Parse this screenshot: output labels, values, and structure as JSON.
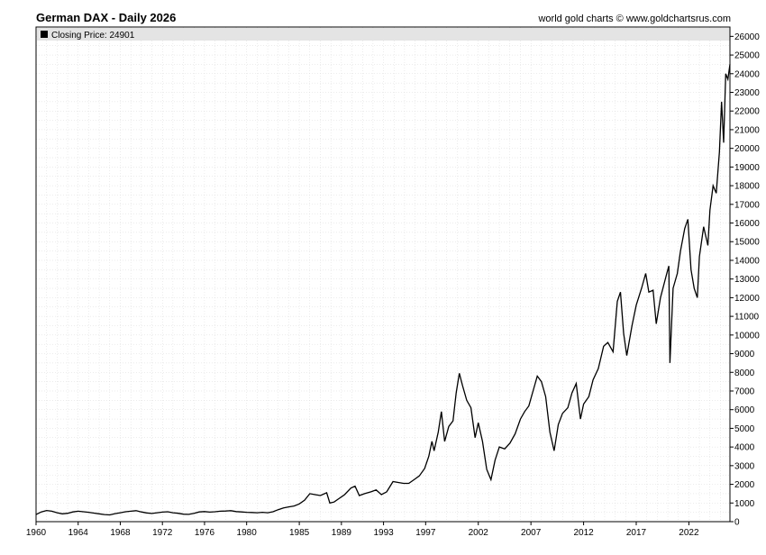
{
  "header": {
    "title": "German DAX - Daily 2026",
    "credit": "world gold charts © www.goldchartsrus.com"
  },
  "legend": {
    "label": "Closing Price: 24901",
    "swatch_color": "#000000"
  },
  "colors": {
    "line": "#000000",
    "grid": "#d8d8d8",
    "legend_bg": "#e4e4e4",
    "frame": "#000000"
  },
  "chart_data": {
    "type": "line",
    "xlim": [
      1960,
      2025.9
    ],
    "ylim": [
      0,
      26500
    ],
    "x_ticks": [
      1960,
      1964,
      1968,
      1972,
      1976,
      1980,
      1985,
      1989,
      1993,
      1997,
      2002,
      2007,
      2012,
      2017,
      2022
    ],
    "y_ticks": [
      0,
      1000,
      2000,
      3000,
      4000,
      5000,
      6000,
      7000,
      8000,
      9000,
      10000,
      11000,
      12000,
      13000,
      14000,
      15000,
      16000,
      17000,
      18000,
      19000,
      20000,
      21000,
      22000,
      23000,
      24000,
      25000,
      26000
    ],
    "grid": true,
    "legend_position": "top-left",
    "series": [
      {
        "values": [
          [
            1960.0,
            380
          ],
          [
            1960.5,
            520
          ],
          [
            1961.0,
            600
          ],
          [
            1961.5,
            560
          ],
          [
            1962.0,
            480
          ],
          [
            1962.5,
            420
          ],
          [
            1963.0,
            450
          ],
          [
            1963.5,
            520
          ],
          [
            1964.0,
            560
          ],
          [
            1964.5,
            530
          ],
          [
            1965.0,
            500
          ],
          [
            1965.5,
            460
          ],
          [
            1966.0,
            420
          ],
          [
            1966.5,
            380
          ],
          [
            1967.0,
            360
          ],
          [
            1967.5,
            430
          ],
          [
            1968.0,
            480
          ],
          [
            1968.5,
            530
          ],
          [
            1969.0,
            560
          ],
          [
            1969.5,
            590
          ],
          [
            1970.0,
            520
          ],
          [
            1970.5,
            470
          ],
          [
            1971.0,
            440
          ],
          [
            1971.5,
            480
          ],
          [
            1972.0,
            510
          ],
          [
            1972.5,
            530
          ],
          [
            1973.0,
            480
          ],
          [
            1973.5,
            450
          ],
          [
            1974.0,
            400
          ],
          [
            1974.5,
            390
          ],
          [
            1975.0,
            450
          ],
          [
            1975.5,
            520
          ],
          [
            1976.0,
            540
          ],
          [
            1976.5,
            510
          ],
          [
            1977.0,
            530
          ],
          [
            1977.5,
            560
          ],
          [
            1978.0,
            570
          ],
          [
            1978.5,
            590
          ],
          [
            1979.0,
            540
          ],
          [
            1979.5,
            520
          ],
          [
            1980.0,
            500
          ],
          [
            1980.5,
            490
          ],
          [
            1981.0,
            480
          ],
          [
            1981.5,
            500
          ],
          [
            1982.0,
            480
          ],
          [
            1982.5,
            530
          ],
          [
            1983.0,
            640
          ],
          [
            1983.5,
            740
          ],
          [
            1984.0,
            790
          ],
          [
            1984.5,
            840
          ],
          [
            1985.0,
            950
          ],
          [
            1985.5,
            1150
          ],
          [
            1986.0,
            1500
          ],
          [
            1986.5,
            1450
          ],
          [
            1987.0,
            1400
          ],
          [
            1987.6,
            1550
          ],
          [
            1987.9,
            1000
          ],
          [
            1988.3,
            1050
          ],
          [
            1988.8,
            1250
          ],
          [
            1989.3,
            1450
          ],
          [
            1989.9,
            1800
          ],
          [
            1990.3,
            1900
          ],
          [
            1990.7,
            1400
          ],
          [
            1991.2,
            1500
          ],
          [
            1991.8,
            1600
          ],
          [
            1992.3,
            1700
          ],
          [
            1992.8,
            1450
          ],
          [
            1993.3,
            1600
          ],
          [
            1993.9,
            2150
          ],
          [
            1994.4,
            2100
          ],
          [
            1994.9,
            2050
          ],
          [
            1995.4,
            2050
          ],
          [
            1995.9,
            2250
          ],
          [
            1996.4,
            2450
          ],
          [
            1996.9,
            2850
          ],
          [
            1997.3,
            3500
          ],
          [
            1997.6,
            4300
          ],
          [
            1997.8,
            3800
          ],
          [
            1998.2,
            4800
          ],
          [
            1998.5,
            5900
          ],
          [
            1998.8,
            4300
          ],
          [
            1999.2,
            5100
          ],
          [
            1999.6,
            5400
          ],
          [
            1999.9,
            6900
          ],
          [
            2000.2,
            7950
          ],
          [
            2000.5,
            7300
          ],
          [
            2000.9,
            6500
          ],
          [
            2001.3,
            6100
          ],
          [
            2001.7,
            4500
          ],
          [
            2002.0,
            5300
          ],
          [
            2002.4,
            4300
          ],
          [
            2002.8,
            2800
          ],
          [
            2003.2,
            2250
          ],
          [
            2003.6,
            3300
          ],
          [
            2004.0,
            4000
          ],
          [
            2004.5,
            3900
          ],
          [
            2005.0,
            4200
          ],
          [
            2005.5,
            4700
          ],
          [
            2006.0,
            5500
          ],
          [
            2006.4,
            5900
          ],
          [
            2006.8,
            6200
          ],
          [
            2007.2,
            7000
          ],
          [
            2007.6,
            7800
          ],
          [
            2008.0,
            7500
          ],
          [
            2008.4,
            6700
          ],
          [
            2008.8,
            4800
          ],
          [
            2009.2,
            3800
          ],
          [
            2009.6,
            5200
          ],
          [
            2010.0,
            5800
          ],
          [
            2010.5,
            6100
          ],
          [
            2010.9,
            6900
          ],
          [
            2011.3,
            7400
          ],
          [
            2011.7,
            5500
          ],
          [
            2012.0,
            6300
          ],
          [
            2012.5,
            6700
          ],
          [
            2012.9,
            7600
          ],
          [
            2013.4,
            8200
          ],
          [
            2013.9,
            9400
          ],
          [
            2014.3,
            9600
          ],
          [
            2014.8,
            9100
          ],
          [
            2015.2,
            11800
          ],
          [
            2015.5,
            12300
          ],
          [
            2015.8,
            10100
          ],
          [
            2016.1,
            8900
          ],
          [
            2016.6,
            10500
          ],
          [
            2017.0,
            11600
          ],
          [
            2017.5,
            12500
          ],
          [
            2017.9,
            13300
          ],
          [
            2018.2,
            12300
          ],
          [
            2018.6,
            12400
          ],
          [
            2018.9,
            10600
          ],
          [
            2019.3,
            12000
          ],
          [
            2019.9,
            13300
          ],
          [
            2020.1,
            13700
          ],
          [
            2020.2,
            8500
          ],
          [
            2020.5,
            12500
          ],
          [
            2020.9,
            13300
          ],
          [
            2021.2,
            14500
          ],
          [
            2021.6,
            15700
          ],
          [
            2021.9,
            16200
          ],
          [
            2022.2,
            13500
          ],
          [
            2022.5,
            12500
          ],
          [
            2022.8,
            12000
          ],
          [
            2023.0,
            14200
          ],
          [
            2023.4,
            15800
          ],
          [
            2023.8,
            14800
          ],
          [
            2024.0,
            16700
          ],
          [
            2024.3,
            18000
          ],
          [
            2024.6,
            17600
          ],
          [
            2024.9,
            19800
          ],
          [
            2025.1,
            22500
          ],
          [
            2025.3,
            20300
          ],
          [
            2025.5,
            24000
          ],
          [
            2025.7,
            23700
          ],
          [
            2025.9,
            24500
          ]
        ]
      }
    ]
  }
}
